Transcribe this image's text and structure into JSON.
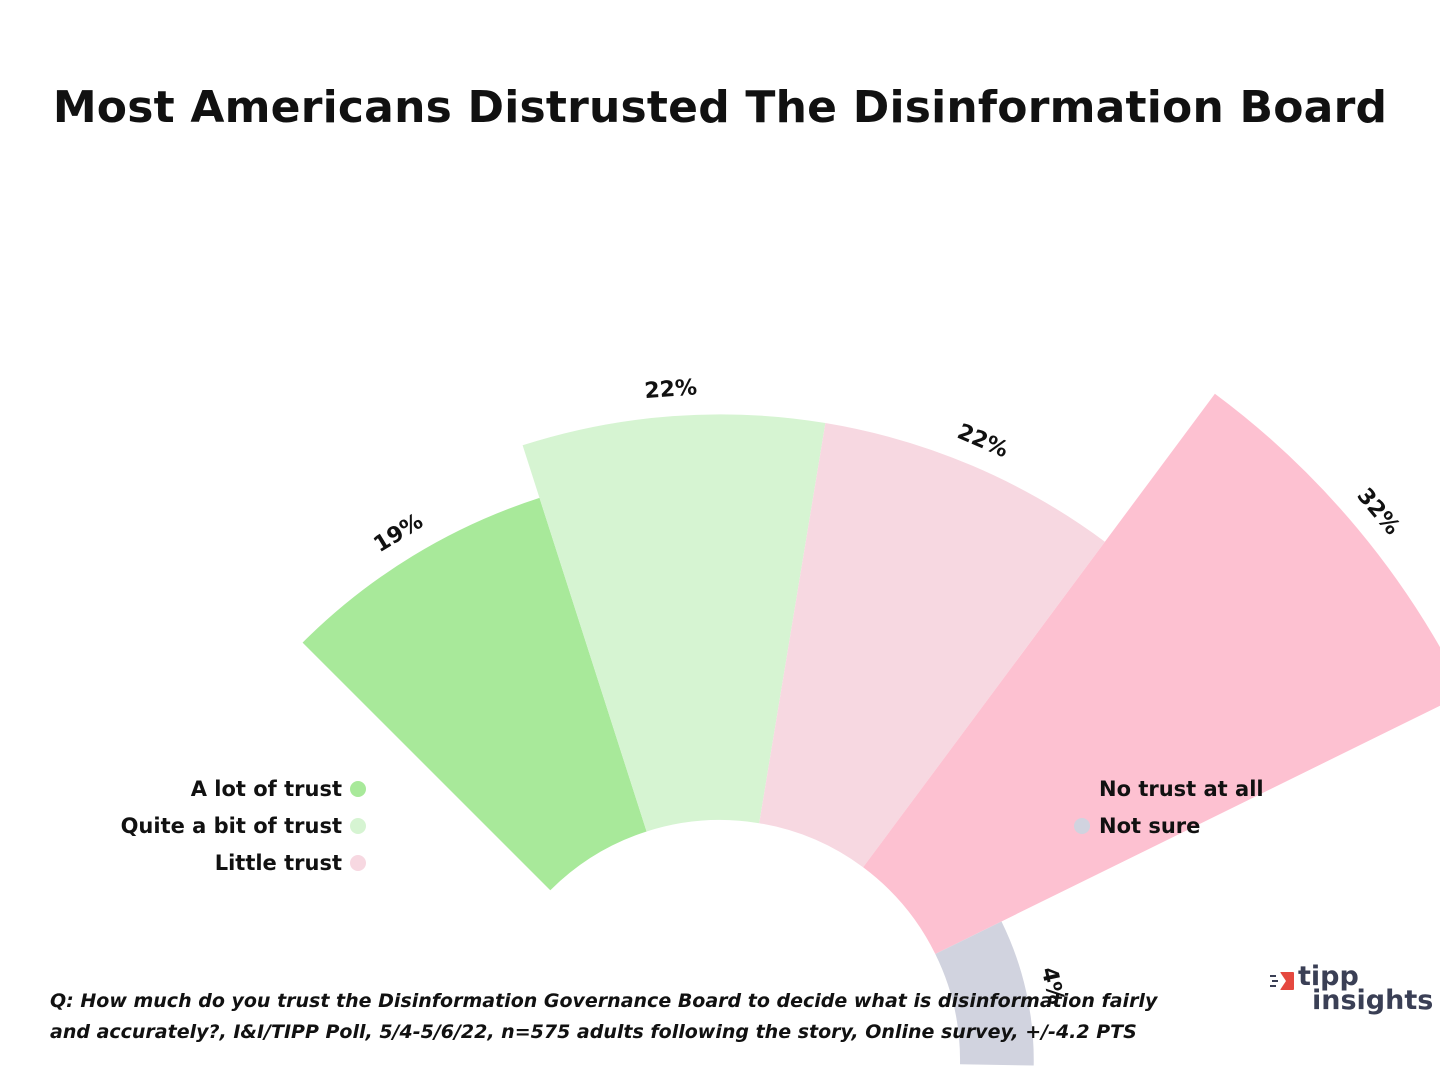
{
  "title": "Most Americans Distrusted The Disinformation Board",
  "chart_data": {
    "type": "pie",
    "variant": "radial-bar",
    "categories": [
      "A lot of trust",
      "Quite a bit of trust",
      "Little trust",
      "No trust at all",
      "Not sure"
    ],
    "values": [
      19,
      22,
      22,
      32,
      4
    ],
    "labels": [
      "19%",
      "22%",
      "22%",
      "32%",
      "4%"
    ],
    "colors": [
      "#a8e99a",
      "#d6f4d2",
      "#f7d8e1",
      "#fdc1d1",
      "#d1d3df"
    ],
    "legend": {
      "left": [
        {
          "label": "A lot of trust",
          "color": "#a8e99a"
        },
        {
          "label": "Quite a bit of trust",
          "color": "#d6f4d2"
        },
        {
          "label": "Little trust",
          "color": "#f7d8e1"
        }
      ],
      "right": [
        {
          "label": "No trust at all",
          "color": "#fdc1d1"
        },
        {
          "label": "Not sure",
          "color": "#d1d3df"
        }
      ]
    }
  },
  "footnote": {
    "line1": "Q:  How much do you trust the Disinformation Governance Board to decide what is disinformation fairly",
    "line2": "and accurately?, I&I/TIPP Poll, 5/4-5/6/22, n=575 adults following the story, Online survey, +/-4.2 PTS"
  },
  "logo": {
    "line1": "tipp",
    "line2": "insights",
    "accent_color": "#e5483f",
    "text_color": "#3a3f55"
  }
}
